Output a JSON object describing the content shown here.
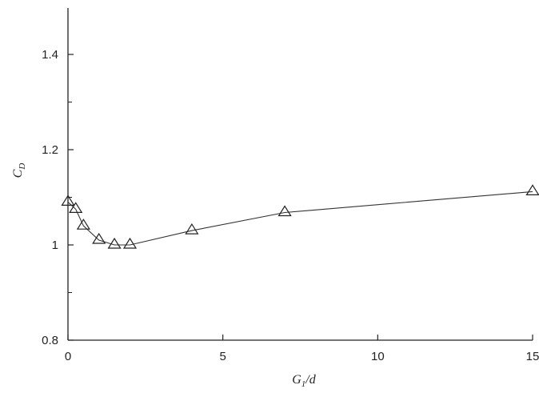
{
  "chart_data": {
    "type": "line",
    "title": "",
    "xlabel": {
      "main": "G",
      "sub": "1",
      "suffix": "/d"
    },
    "ylabel": {
      "main": "C",
      "sub": "D"
    },
    "xlim": [
      0,
      15
    ],
    "ylim": [
      0.8,
      1.5
    ],
    "x_ticks": [
      0,
      5,
      10,
      15
    ],
    "x_tick_labels": [
      "0",
      "5",
      "10",
      "15"
    ],
    "y_ticks": [
      0.8,
      1.0,
      1.2,
      1.4
    ],
    "y_tick_labels": [
      "0.8",
      "1",
      "1.2",
      "1.4"
    ],
    "y_minor_ticks": [
      0.9,
      1.1,
      1.3
    ],
    "grid": false,
    "marker": "open-triangle",
    "series": [
      {
        "x": [
          0,
          0.25,
          0.5,
          1.0,
          1.5,
          2.0,
          4.0,
          7.0,
          15.0
        ],
        "y": [
          1.09,
          1.075,
          1.04,
          1.01,
          1.0,
          1.0,
          1.03,
          1.068,
          1.112
        ]
      }
    ]
  }
}
